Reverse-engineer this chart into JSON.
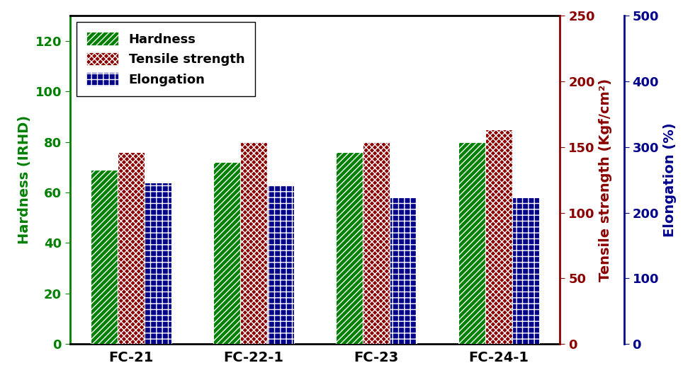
{
  "categories": [
    "FC-21",
    "FC-22-1",
    "FC-23",
    "FC-24-1"
  ],
  "hardness": [
    69,
    72,
    76,
    80
  ],
  "tensile_strength": [
    76,
    80,
    80,
    85
  ],
  "elongation": [
    64,
    63,
    58,
    58
  ],
  "hardness_color": "#008000",
  "tensile_color": "#8b0000",
  "elongation_color": "#00008b",
  "ylabel_left": "Hardness (IRHD)",
  "ylabel_right1": "Tensile strength (Kgf/cm²)",
  "ylabel_right2": "Elongation (%)",
  "ylim_left": [
    0,
    130
  ],
  "ylim_tensile": [
    0,
    250
  ],
  "ylim_elongation": [
    0,
    500
  ],
  "yticks_left": [
    0,
    20,
    40,
    60,
    80,
    100,
    120
  ],
  "yticks_tensile": [
    0,
    50,
    100,
    150,
    200,
    250
  ],
  "yticks_elongation": [
    0,
    100,
    200,
    300,
    400,
    500
  ],
  "legend_labels": [
    "Hardness",
    "Tensile strength",
    "Elongation"
  ],
  "label_fontsize": 14,
  "tick_fontsize": 13,
  "legend_fontsize": 13,
  "bar_width": 0.22,
  "figure_width": 9.88,
  "figure_height": 5.3,
  "dpi": 100
}
